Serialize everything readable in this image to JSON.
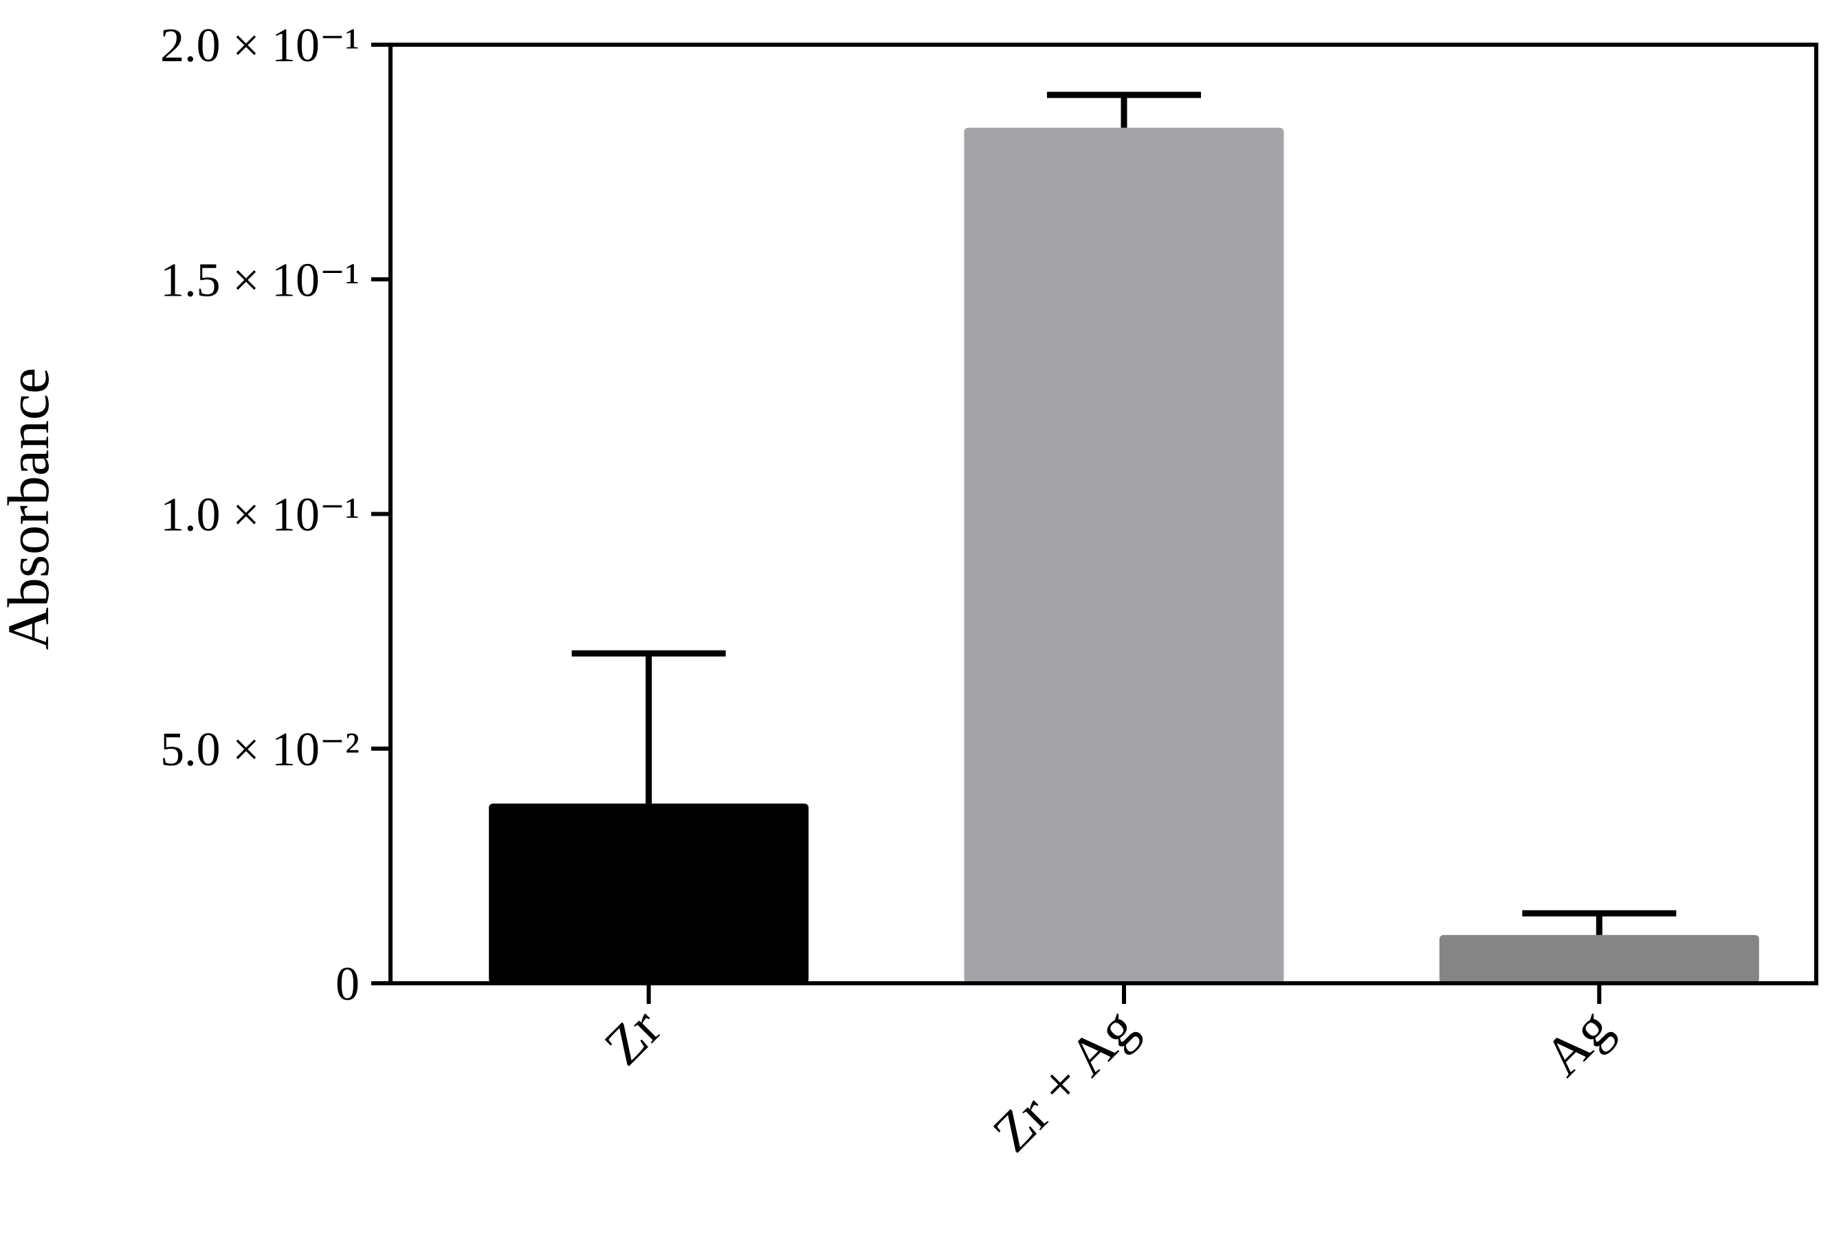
{
  "chart_data": {
    "type": "bar",
    "y_label": "Absorbance",
    "categories": [
      "Zr",
      "Zr + Ag",
      "Ag"
    ],
    "values": [
      0.0383,
      0.1823,
      0.0103
    ],
    "errors": [
      0.032,
      0.007,
      0.0046
    ],
    "colors": [
      "#000000",
      "#a4a3a8",
      "#858585"
    ],
    "ylim": [
      0,
      0.2
    ],
    "yticks": [
      0,
      {
        "value": 0.05,
        "label": "5.0 × 10⁻²"
      },
      {
        "value": 0.1,
        "label": "1.0 × 10⁻¹"
      },
      {
        "value": 0.15,
        "label": "1.5 × 10⁻¹"
      },
      {
        "value": 0.2,
        "label": "2.0 × 10⁻¹"
      }
    ],
    "grid": false
  }
}
